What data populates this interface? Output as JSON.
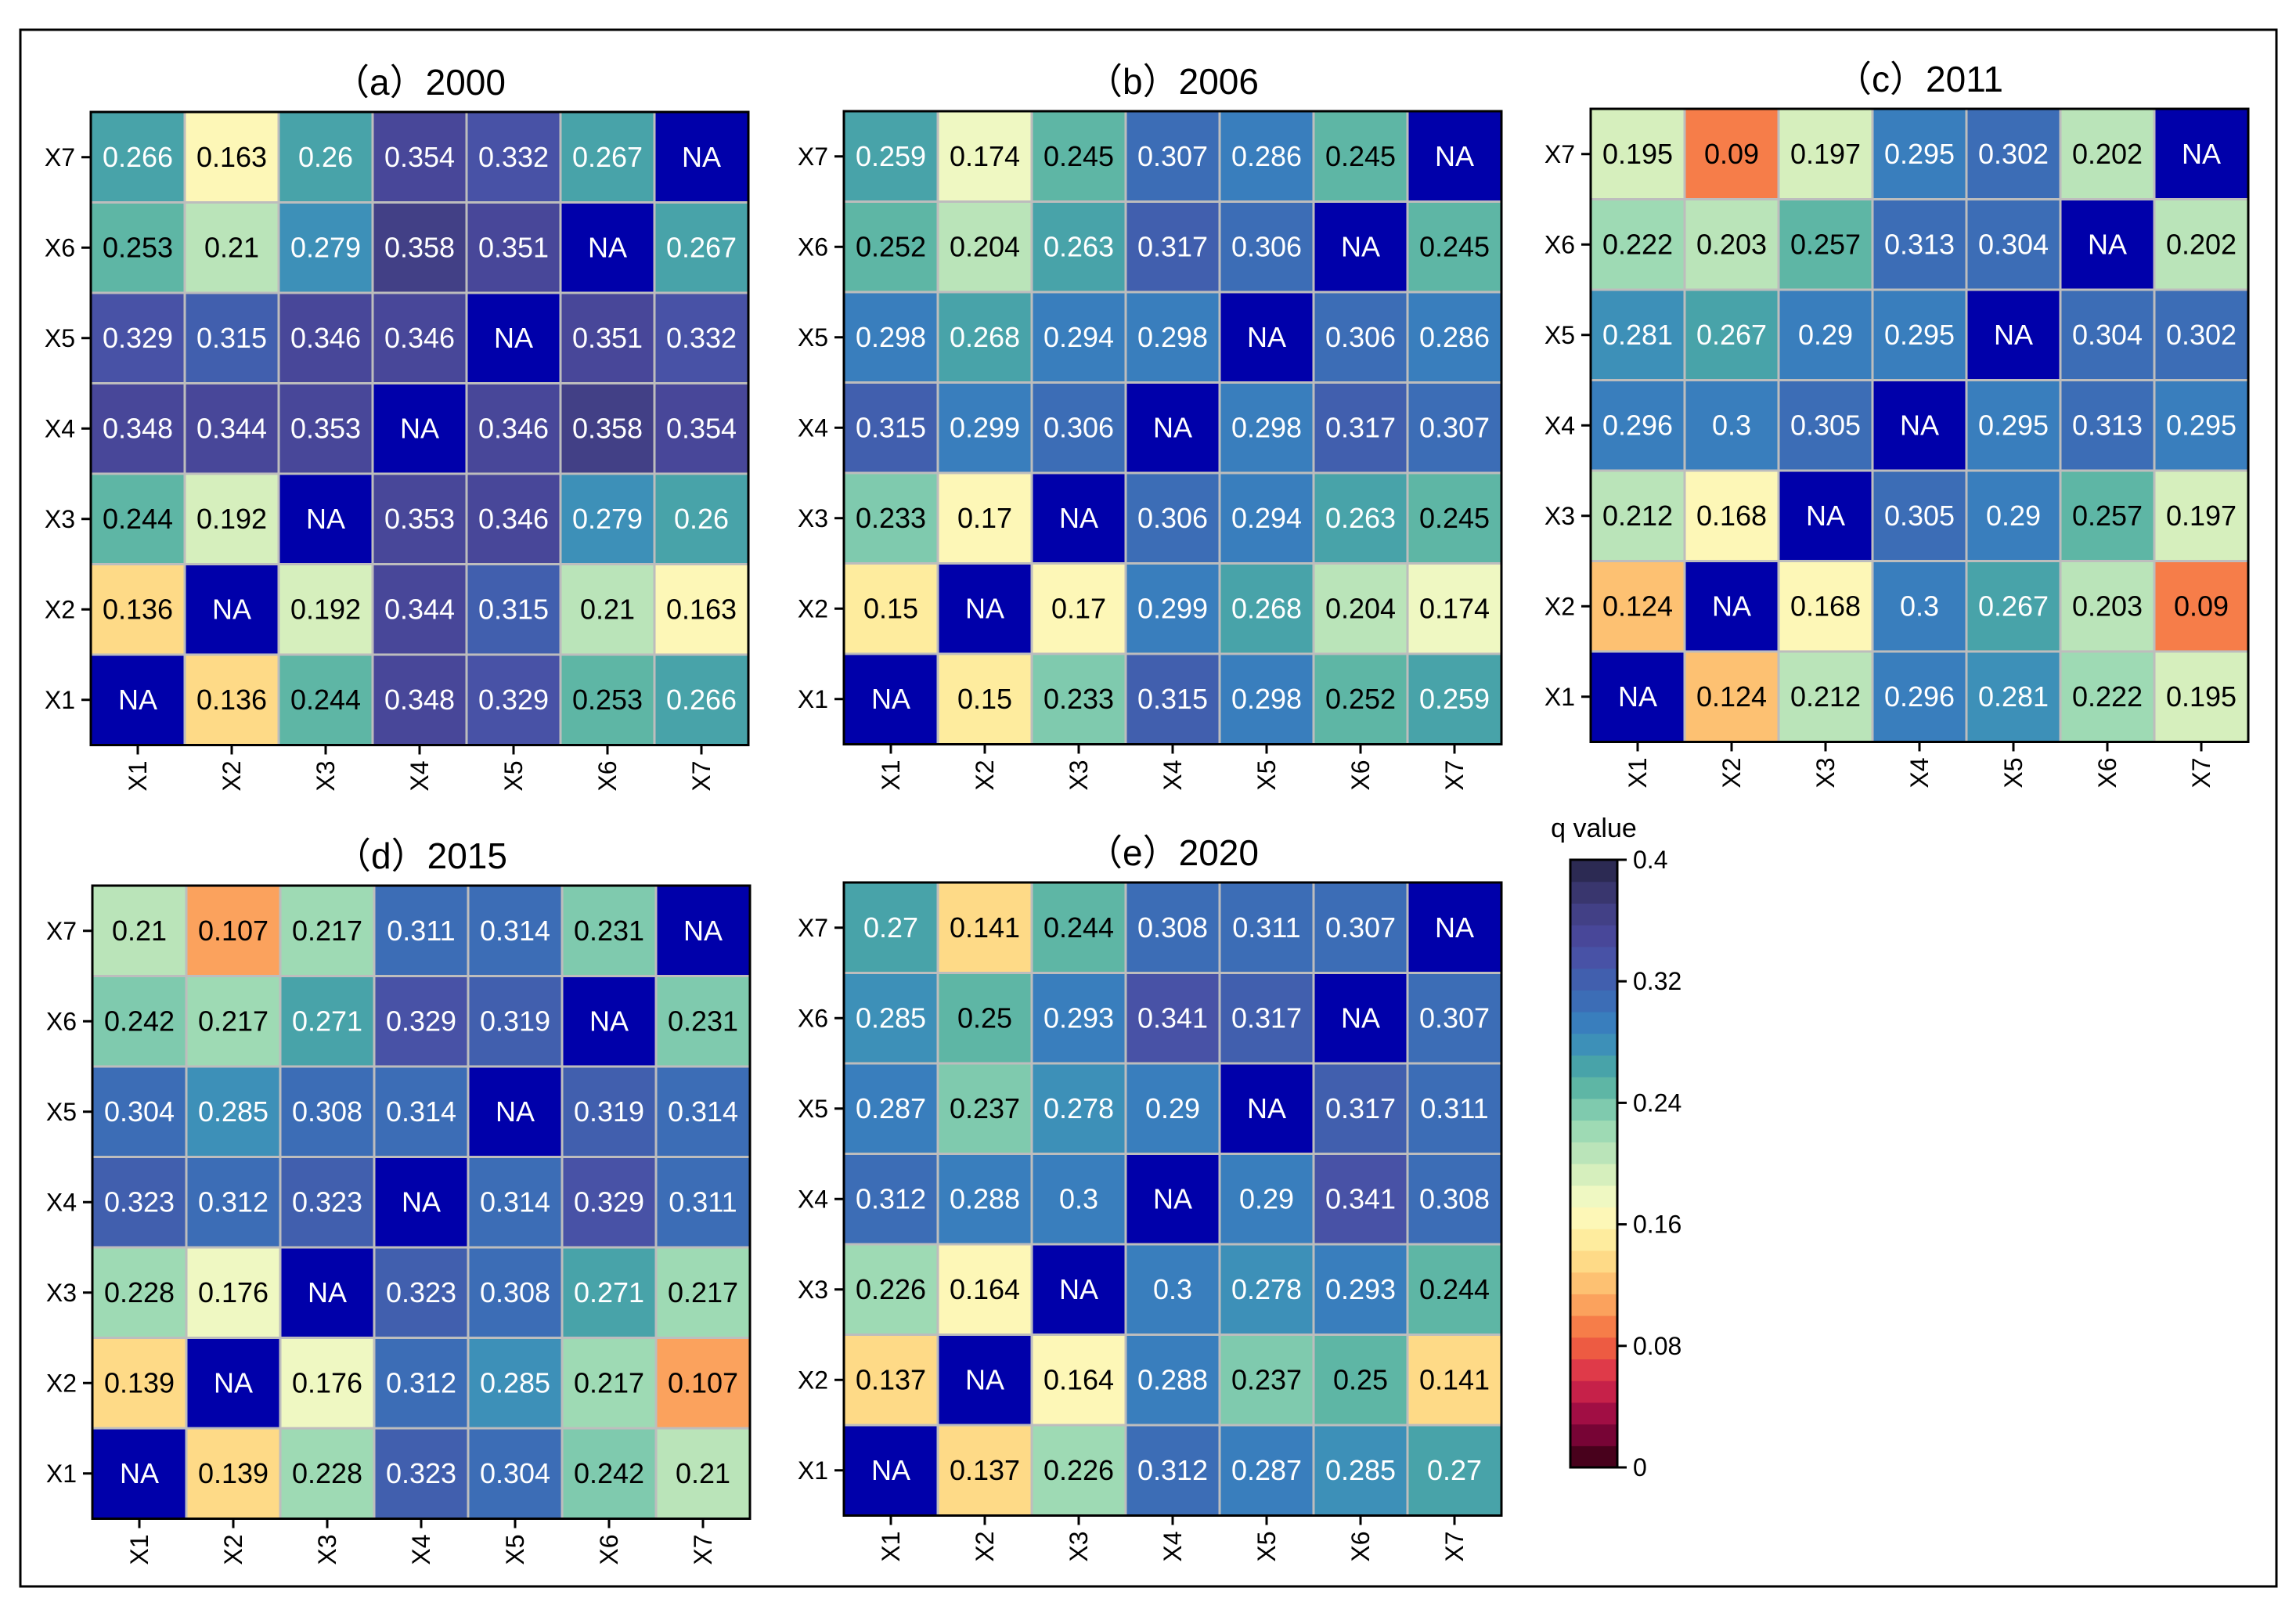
{
  "figure": {
    "colorbar": {
      "title": "q value",
      "min": 0,
      "max": 0.4,
      "ticks": [
        "0",
        "0.08",
        "0.16",
        "0.24",
        "0.32",
        "0.4"
      ],
      "tick_values": [
        0,
        0.08,
        0.16,
        0.24,
        0.32,
        0.4
      ],
      "steps": 28,
      "na_color": "#0000aa",
      "cmap": [
        "#30000f",
        "#8e0541",
        "#d82a4c",
        "#f46b3f",
        "#fdb467",
        "#fee691",
        "#fcfdc4",
        "#c9eabb",
        "#8fd4b2",
        "#4eaca1",
        "#3786c0",
        "#3d65b2",
        "#4b4ba2",
        "#3f3c7c",
        "#252445"
      ]
    }
  },
  "chart_data": [
    {
      "type": "heatmap",
      "title": "（a）2000",
      "x_labels": [
        "X1",
        "X2",
        "X3",
        "X4",
        "X5",
        "X6",
        "X7"
      ],
      "y_labels": [
        "X7",
        "X6",
        "X5",
        "X4",
        "X3",
        "X2",
        "X1"
      ],
      "cells": [
        [
          "0.266",
          "0.163",
          "0.26",
          "0.354",
          "0.332",
          "0.267",
          "NA"
        ],
        [
          "0.253",
          "0.21",
          "0.279",
          "0.358",
          "0.351",
          "NA",
          "0.267"
        ],
        [
          "0.329",
          "0.315",
          "0.346",
          "0.346",
          "NA",
          "0.351",
          "0.332"
        ],
        [
          "0.348",
          "0.344",
          "0.353",
          "NA",
          "0.346",
          "0.358",
          "0.354"
        ],
        [
          "0.244",
          "0.192",
          "NA",
          "0.353",
          "0.346",
          "0.279",
          "0.26"
        ],
        [
          "0.136",
          "NA",
          "0.192",
          "0.344",
          "0.315",
          "0.21",
          "0.163"
        ],
        [
          "NA",
          "0.136",
          "0.244",
          "0.348",
          "0.329",
          "0.253",
          "0.266"
        ]
      ]
    },
    {
      "type": "heatmap",
      "title": "（b）2006",
      "x_labels": [
        "X1",
        "X2",
        "X3",
        "X4",
        "X5",
        "X6",
        "X7"
      ],
      "y_labels": [
        "X7",
        "X6",
        "X5",
        "X4",
        "X3",
        "X2",
        "X1"
      ],
      "cells": [
        [
          "0.259",
          "0.174",
          "0.245",
          "0.307",
          "0.286",
          "0.245",
          "NA"
        ],
        [
          "0.252",
          "0.204",
          "0.263",
          "0.317",
          "0.306",
          "NA",
          "0.245"
        ],
        [
          "0.298",
          "0.268",
          "0.294",
          "0.298",
          "NA",
          "0.306",
          "0.286"
        ],
        [
          "0.315",
          "0.299",
          "0.306",
          "NA",
          "0.298",
          "0.317",
          "0.307"
        ],
        [
          "0.233",
          "0.17",
          "NA",
          "0.306",
          "0.294",
          "0.263",
          "0.245"
        ],
        [
          "0.15",
          "NA",
          "0.17",
          "0.299",
          "0.268",
          "0.204",
          "0.174"
        ],
        [
          "NA",
          "0.15",
          "0.233",
          "0.315",
          "0.298",
          "0.252",
          "0.259"
        ]
      ]
    },
    {
      "type": "heatmap",
      "title": "（c）2011",
      "x_labels": [
        "X1",
        "X2",
        "X3",
        "X4",
        "X5",
        "X6",
        "X7"
      ],
      "y_labels": [
        "X7",
        "X6",
        "X5",
        "X4",
        "X3",
        "X2",
        "X1"
      ],
      "cells": [
        [
          "0.195",
          "0.09",
          "0.197",
          "0.295",
          "0.302",
          "0.202",
          "NA"
        ],
        [
          "0.222",
          "0.203",
          "0.257",
          "0.313",
          "0.304",
          "NA",
          "0.202"
        ],
        [
          "0.281",
          "0.267",
          "0.29",
          "0.295",
          "NA",
          "0.304",
          "0.302"
        ],
        [
          "0.296",
          "0.3",
          "0.305",
          "NA",
          "0.295",
          "0.313",
          "0.295"
        ],
        [
          "0.212",
          "0.168",
          "NA",
          "0.305",
          "0.29",
          "0.257",
          "0.197"
        ],
        [
          "0.124",
          "NA",
          "0.168",
          "0.3",
          "0.267",
          "0.203",
          "0.09"
        ],
        [
          "NA",
          "0.124",
          "0.212",
          "0.296",
          "0.281",
          "0.222",
          "0.195"
        ]
      ]
    },
    {
      "type": "heatmap",
      "title": "（d）2015",
      "x_labels": [
        "X1",
        "X2",
        "X3",
        "X4",
        "X5",
        "X6",
        "X7"
      ],
      "y_labels": [
        "X7",
        "X6",
        "X5",
        "X4",
        "X3",
        "X2",
        "X1"
      ],
      "cells": [
        [
          "0.21",
          "0.107",
          "0.217",
          "0.311",
          "0.314",
          "0.231",
          "NA"
        ],
        [
          "0.242",
          "0.217",
          "0.271",
          "0.329",
          "0.319",
          "NA",
          "0.231"
        ],
        [
          "0.304",
          "0.285",
          "0.308",
          "0.314",
          "NA",
          "0.319",
          "0.314"
        ],
        [
          "0.323",
          "0.312",
          "0.323",
          "NA",
          "0.314",
          "0.329",
          "0.311"
        ],
        [
          "0.228",
          "0.176",
          "NA",
          "0.323",
          "0.308",
          "0.271",
          "0.217"
        ],
        [
          "0.139",
          "NA",
          "0.176",
          "0.312",
          "0.285",
          "0.217",
          "0.107"
        ],
        [
          "NA",
          "0.139",
          "0.228",
          "0.323",
          "0.304",
          "0.242",
          "0.21"
        ]
      ]
    },
    {
      "type": "heatmap",
      "title": "（e）2020",
      "x_labels": [
        "X1",
        "X2",
        "X3",
        "X4",
        "X5",
        "X6",
        "X7"
      ],
      "y_labels": [
        "X7",
        "X6",
        "X5",
        "X4",
        "X3",
        "X2",
        "X1"
      ],
      "cells": [
        [
          "0.27",
          "0.141",
          "0.244",
          "0.308",
          "0.311",
          "0.307",
          "NA"
        ],
        [
          "0.285",
          "0.25",
          "0.293",
          "0.341",
          "0.317",
          "NA",
          "0.307"
        ],
        [
          "0.287",
          "0.237",
          "0.278",
          "0.29",
          "NA",
          "0.317",
          "0.311"
        ],
        [
          "0.312",
          "0.288",
          "0.3",
          "NA",
          "0.29",
          "0.341",
          "0.308"
        ],
        [
          "0.226",
          "0.164",
          "NA",
          "0.3",
          "0.278",
          "0.293",
          "0.244"
        ],
        [
          "0.137",
          "NA",
          "0.164",
          "0.288",
          "0.237",
          "0.25",
          "0.141"
        ],
        [
          "NA",
          "0.137",
          "0.226",
          "0.312",
          "0.287",
          "0.285",
          "0.27"
        ]
      ]
    }
  ]
}
